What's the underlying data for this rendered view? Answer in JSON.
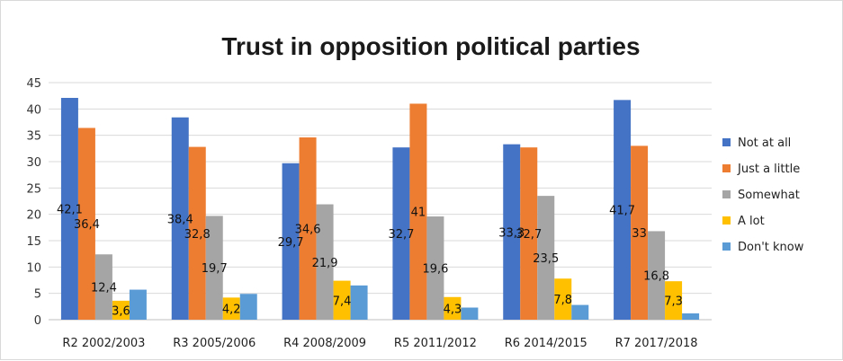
{
  "chart_data": {
    "type": "bar",
    "title": "Trust in opposition political parties",
    "xlabel": "",
    "ylabel": "",
    "ylim": [
      0,
      45
    ],
    "yticks": [
      0,
      5,
      10,
      15,
      20,
      25,
      30,
      35,
      40,
      45
    ],
    "grid": true,
    "legend_position": "right",
    "categories": [
      "R2 2002/2003",
      "R3 2005/2006",
      "R4 2008/2009",
      "R5 2011/2012",
      "R6 2014/2015",
      "R7 2017/2018"
    ],
    "series": [
      {
        "name": "Not at all",
        "color": "#4472C4",
        "values": [
          42.1,
          38.4,
          29.7,
          32.7,
          33.3,
          41.7
        ]
      },
      {
        "name": "Just a little",
        "color": "#ED7D31",
        "values": [
          36.4,
          32.8,
          34.6,
          41,
          32.7,
          33
        ]
      },
      {
        "name": "Somewhat",
        "color": "#A5A5A5",
        "values": [
          12.4,
          19.7,
          21.9,
          19.6,
          23.5,
          16.8
        ]
      },
      {
        "name": "A lot",
        "color": "#FFC000",
        "values": [
          3.6,
          4.2,
          7.4,
          4.3,
          7.8,
          7.3
        ]
      },
      {
        "name": "Don't know",
        "color": "#5B9BD5",
        "values": [
          5.7,
          4.9,
          6.5,
          2.3,
          2.8,
          1.2
        ]
      }
    ],
    "data_labels": [
      [
        "42,1",
        "38,4",
        "29,7",
        "32,7",
        "33,3",
        "41,7"
      ],
      [
        "36,4",
        "32,8",
        "34,6",
        "41",
        "32,7",
        "33"
      ],
      [
        "12,4",
        "19,7",
        "21,9",
        "19,6",
        "23,5",
        "16,8"
      ],
      [
        "3,6",
        "4,2",
        "7,4",
        "4,3",
        "7,8",
        "7,3"
      ],
      [
        "",
        "",
        "",
        "",
        "",
        ""
      ]
    ]
  }
}
